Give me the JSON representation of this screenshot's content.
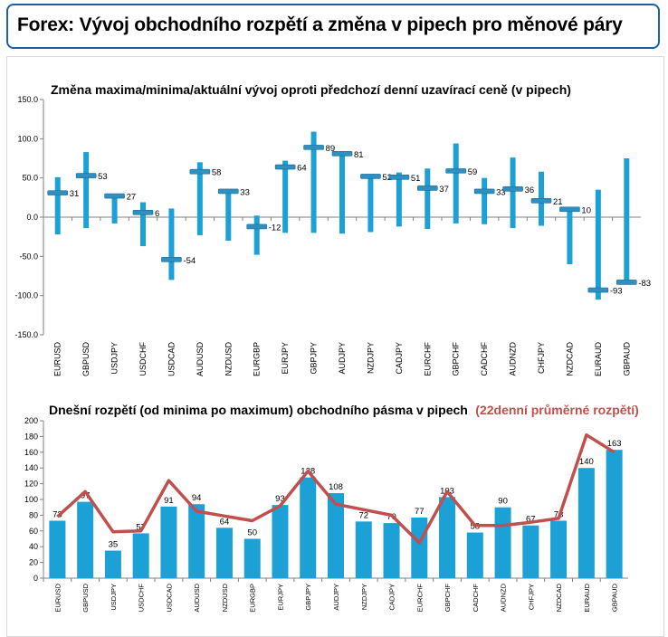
{
  "page_title": "Forex: Vývoj obchodního rozpětí a změna v pipech pro měnové páry",
  "colors": {
    "title_border": "#1f5fa8",
    "bar": "#1ba1d6",
    "marker": "#2e8fc0",
    "line": "#c0504d",
    "axis": "#808080"
  },
  "chart_data": [
    {
      "type": "bar",
      "title": "Změna maxima/minima/aktuální vývoj oproti předchozí denní uzavírací ceně (v pipech)",
      "categories": [
        "EURUSD",
        "GBPUSD",
        "USDJPY",
        "USDCHF",
        "USDCAD",
        "AUDUSD",
        "NZDUSD",
        "EURGBP",
        "EURJPY",
        "GBPJPY",
        "AUDJPY",
        "NZDJPY",
        "CADJPY",
        "EURCHF",
        "GBPCHF",
        "CADCHF",
        "AUDNZD",
        "CHFJPY",
        "NZDCAD",
        "EURAUD",
        "GBPAUD"
      ],
      "series": [
        {
          "values": [
            51,
            83,
            28,
            19,
            11,
            70,
            34,
            2,
            72,
            109,
            83,
            53,
            57,
            62,
            94,
            50,
            76,
            58,
            13,
            35,
            75
          ]
        },
        {
          "values": [
            -22,
            -14,
            -8,
            -37,
            -80,
            -23,
            -30,
            -48,
            -20,
            -20,
            -21,
            -19,
            -12,
            -15,
            -8,
            -9,
            -14,
            -11,
            -60,
            -105,
            -86
          ]
        },
        {
          "values": [
            31,
            53,
            27,
            6,
            -54,
            58,
            33,
            -12,
            64,
            89,
            81,
            52,
            51,
            37,
            59,
            33,
            36,
            21,
            10,
            -93,
            -83
          ]
        }
      ],
      "labels": [
        "31",
        "53",
        "27",
        "6",
        "-54",
        "58",
        "33",
        "-12",
        "64",
        "89",
        "81",
        "52",
        "51",
        "37",
        "59",
        "33",
        "36",
        "21",
        "10",
        "-93",
        "-83"
      ],
      "yticks": [
        "150.0",
        "100.0",
        "50.0",
        "0.0",
        "-50.0",
        "-100.0",
        "-150.0"
      ],
      "ylim": [
        -150,
        150
      ],
      "grid": false,
      "legend": "none"
    },
    {
      "type": "bar",
      "title": "Dnešní rozpětí (od minima po maximum) obchodního pásma v pipech",
      "title_red": "(22denní průměrné rozpětí)",
      "categories": [
        "EURUSD",
        "GBPUSD",
        "USDJPY",
        "USDCHF",
        "USDCAD",
        "AUDUSD",
        "NZDUSD",
        "EURGBP",
        "EURJPY",
        "GBPJPY",
        "AUDJPY",
        "NZDJPY",
        "CADJPY",
        "EURCHF",
        "GBPCHF",
        "CADCHF",
        "AUDNZD",
        "CHFJPY",
        "NZDCAD",
        "EURAUD",
        "GBPAUD"
      ],
      "series": [
        {
          "values": [
            73,
            97,
            35,
            57,
            91,
            94,
            64,
            50,
            93,
            128,
            108,
            72,
            70,
            77,
            103,
            58,
            90,
            67,
            73,
            140,
            163
          ]
        },
        {
          "type": "line",
          "values": [
            78,
            110,
            59,
            60,
            124,
            85,
            79,
            73,
            92,
            136,
            94,
            87,
            80,
            45,
            110,
            67,
            67,
            71,
            76,
            182,
            160
          ]
        }
      ],
      "labels": [
        "73",
        "97",
        "35",
        "57",
        "91",
        "94",
        "64",
        "50",
        "93",
        "128",
        "108",
        "72",
        "70",
        "77",
        "103",
        "58",
        "90",
        "67",
        "73",
        "140",
        "163"
      ],
      "yticks": [
        "200",
        "180",
        "160",
        "140",
        "120",
        "100",
        "80",
        "60",
        "40",
        "20",
        "0"
      ],
      "ylim": [
        0,
        200
      ],
      "grid": false,
      "legend": "none"
    }
  ]
}
